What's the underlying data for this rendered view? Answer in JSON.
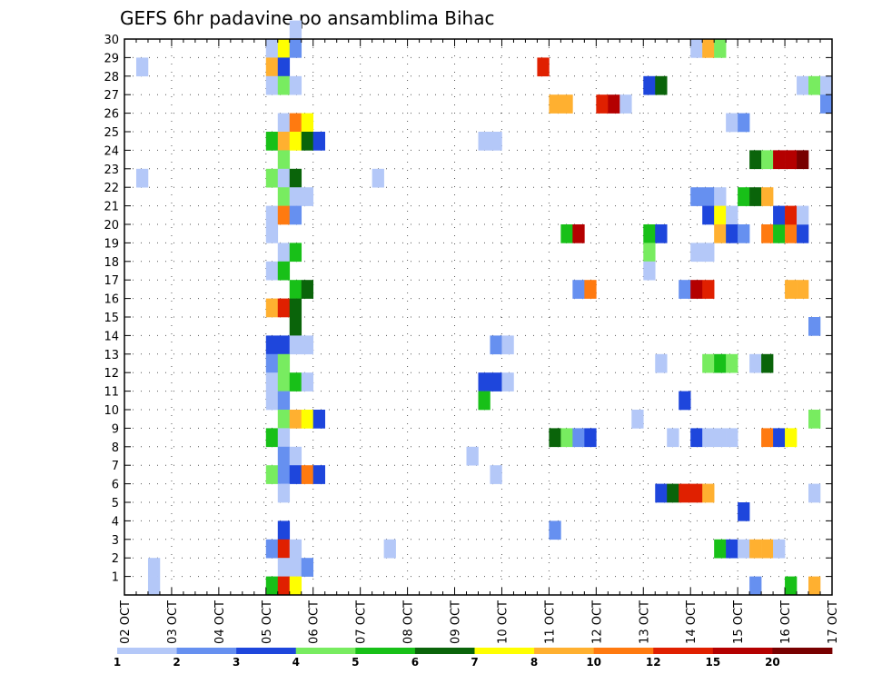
{
  "chart_data": {
    "type": "heatmap",
    "title": "GEFS 6hr padavine po ansamblima Bihac",
    "xlabel": "",
    "ylabel": "",
    "x_start": "2 OCT 00Z",
    "x_step_hours": 6,
    "x_tick_labels": [
      "02 OCT",
      "03 OCT",
      "04 OCT",
      "05 OCT",
      "06 OCT",
      "07 OCT",
      "08 OCT",
      "09 OCT",
      "10 OCT",
      "11 OCT",
      "12 OCT",
      "13 OCT",
      "14 OCT",
      "15 OCT",
      "16 OCT",
      "17 OCT"
    ],
    "y_tick_labels": [
      "1",
      "2",
      "3",
      "4",
      "5",
      "6",
      "7",
      "8",
      "9",
      "10",
      "11",
      "12",
      "13",
      "14",
      "15",
      "16",
      "17",
      "18",
      "19",
      "20",
      "21",
      "22",
      "23",
      "24",
      "25",
      "26",
      "27",
      "28",
      "29",
      "30"
    ],
    "xlim": [
      0,
      60
    ],
    "ylim": [
      0,
      30
    ],
    "grid": true,
    "colorbar": {
      "labels": [
        "1",
        "2",
        "3",
        "4",
        "5",
        "6",
        "7",
        "8",
        "10",
        "12",
        "15",
        "20"
      ],
      "colors": [
        "#b4c8f8",
        "#6690f0",
        "#1e46dc",
        "#78ec60",
        "#18c018",
        "#0a640a",
        "#ffff00",
        "#ffb030",
        "#ff7a10",
        "#e02000",
        "#b40000",
        "#780000"
      ]
    },
    "cells_note": "Each cell: x = 6-hourly step index from 02 OCT 00Z, y = ensemble row (0 = baseline row below member 1), c = colour class index into colorbar.colors",
    "cells": [
      {
        "x": 1,
        "y": 28,
        "c": 0
      },
      {
        "x": 1,
        "y": 22,
        "c": 0
      },
      {
        "x": 2,
        "y": 1,
        "c": 0
      },
      {
        "x": 2,
        "y": 0,
        "c": 0
      },
      {
        "x": 12,
        "y": 29,
        "c": 0
      },
      {
        "x": 13,
        "y": 29,
        "c": 6
      },
      {
        "x": 14,
        "y": 29,
        "c": 1
      },
      {
        "x": 14,
        "y": 30,
        "c": 0
      },
      {
        "x": 12,
        "y": 28,
        "c": 7
      },
      {
        "x": 13,
        "y": 28,
        "c": 2
      },
      {
        "x": 12,
        "y": 27,
        "c": 0
      },
      {
        "x": 13,
        "y": 27,
        "c": 3
      },
      {
        "x": 14,
        "y": 27,
        "c": 0
      },
      {
        "x": 13,
        "y": 25,
        "c": 0
      },
      {
        "x": 14,
        "y": 25,
        "c": 8
      },
      {
        "x": 15,
        "y": 25,
        "c": 6
      },
      {
        "x": 12,
        "y": 24,
        "c": 4
      },
      {
        "x": 13,
        "y": 24,
        "c": 7
      },
      {
        "x": 14,
        "y": 24,
        "c": 6
      },
      {
        "x": 15,
        "y": 24,
        "c": 5
      },
      {
        "x": 16,
        "y": 24,
        "c": 2
      },
      {
        "x": 13,
        "y": 23,
        "c": 3
      },
      {
        "x": 12,
        "y": 22,
        "c": 3
      },
      {
        "x": 13,
        "y": 22,
        "c": 0
      },
      {
        "x": 14,
        "y": 22,
        "c": 5
      },
      {
        "x": 13,
        "y": 21,
        "c": 3
      },
      {
        "x": 14,
        "y": 21,
        "c": 0
      },
      {
        "x": 15,
        "y": 21,
        "c": 0
      },
      {
        "x": 12,
        "y": 20,
        "c": 0
      },
      {
        "x": 13,
        "y": 20,
        "c": 8
      },
      {
        "x": 14,
        "y": 20,
        "c": 1
      },
      {
        "x": 12,
        "y": 19,
        "c": 0
      },
      {
        "x": 13,
        "y": 18,
        "c": 0
      },
      {
        "x": 14,
        "y": 18,
        "c": 4
      },
      {
        "x": 12,
        "y": 17,
        "c": 0
      },
      {
        "x": 13,
        "y": 17,
        "c": 4
      },
      {
        "x": 14,
        "y": 16,
        "c": 4
      },
      {
        "x": 15,
        "y": 16,
        "c": 5
      },
      {
        "x": 12,
        "y": 15,
        "c": 7
      },
      {
        "x": 13,
        "y": 15,
        "c": 9
      },
      {
        "x": 14,
        "y": 15,
        "c": 5
      },
      {
        "x": 14,
        "y": 14,
        "c": 5
      },
      {
        "x": 12,
        "y": 13,
        "c": 2
      },
      {
        "x": 13,
        "y": 13,
        "c": 2
      },
      {
        "x": 14,
        "y": 13,
        "c": 0
      },
      {
        "x": 15,
        "y": 13,
        "c": 0
      },
      {
        "x": 12,
        "y": 12,
        "c": 1
      },
      {
        "x": 13,
        "y": 12,
        "c": 3
      },
      {
        "x": 12,
        "y": 11,
        "c": 0
      },
      {
        "x": 13,
        "y": 11,
        "c": 3
      },
      {
        "x": 14,
        "y": 11,
        "c": 4
      },
      {
        "x": 15,
        "y": 11,
        "c": 0
      },
      {
        "x": 12,
        "y": 10,
        "c": 0
      },
      {
        "x": 13,
        "y": 10,
        "c": 1
      },
      {
        "x": 13,
        "y": 9,
        "c": 3
      },
      {
        "x": 14,
        "y": 9,
        "c": 7
      },
      {
        "x": 15,
        "y": 9,
        "c": 6
      },
      {
        "x": 16,
        "y": 9,
        "c": 2
      },
      {
        "x": 12,
        "y": 8,
        "c": 4
      },
      {
        "x": 13,
        "y": 8,
        "c": 0
      },
      {
        "x": 13,
        "y": 7,
        "c": 1
      },
      {
        "x": 14,
        "y": 7,
        "c": 0
      },
      {
        "x": 12,
        "y": 6,
        "c": 3
      },
      {
        "x": 13,
        "y": 6,
        "c": 1
      },
      {
        "x": 14,
        "y": 6,
        "c": 2
      },
      {
        "x": 15,
        "y": 6,
        "c": 8
      },
      {
        "x": 16,
        "y": 6,
        "c": 2
      },
      {
        "x": 13,
        "y": 5,
        "c": 0
      },
      {
        "x": 13,
        "y": 3,
        "c": 2
      },
      {
        "x": 12,
        "y": 2,
        "c": 1
      },
      {
        "x": 13,
        "y": 2,
        "c": 9
      },
      {
        "x": 14,
        "y": 2,
        "c": 0
      },
      {
        "x": 13,
        "y": 1,
        "c": 0
      },
      {
        "x": 14,
        "y": 1,
        "c": 0
      },
      {
        "x": 15,
        "y": 1,
        "c": 1
      },
      {
        "x": 12,
        "y": 0,
        "c": 4
      },
      {
        "x": 13,
        "y": 0,
        "c": 9
      },
      {
        "x": 14,
        "y": 0,
        "c": 6
      },
      {
        "x": 21,
        "y": 22,
        "c": 0
      },
      {
        "x": 22,
        "y": 2,
        "c": 0
      },
      {
        "x": 29,
        "y": 7,
        "c": 0
      },
      {
        "x": 30,
        "y": 24,
        "c": 0
      },
      {
        "x": 31,
        "y": 24,
        "c": 0
      },
      {
        "x": 30,
        "y": 11,
        "c": 2
      },
      {
        "x": 31,
        "y": 11,
        "c": 2
      },
      {
        "x": 32,
        "y": 11,
        "c": 0
      },
      {
        "x": 30,
        "y": 10,
        "c": 4
      },
      {
        "x": 31,
        "y": 13,
        "c": 1
      },
      {
        "x": 32,
        "y": 13,
        "c": 0
      },
      {
        "x": 31,
        "y": 6,
        "c": 0
      },
      {
        "x": 35,
        "y": 28,
        "c": 9
      },
      {
        "x": 36,
        "y": 26,
        "c": 7
      },
      {
        "x": 37,
        "y": 26,
        "c": 7
      },
      {
        "x": 36,
        "y": 8,
        "c": 5
      },
      {
        "x": 37,
        "y": 8,
        "c": 3
      },
      {
        "x": 38,
        "y": 8,
        "c": 1
      },
      {
        "x": 39,
        "y": 8,
        "c": 2
      },
      {
        "x": 36,
        "y": 3,
        "c": 1
      },
      {
        "x": 37,
        "y": 19,
        "c": 4
      },
      {
        "x": 38,
        "y": 19,
        "c": 10
      },
      {
        "x": 38,
        "y": 16,
        "c": 1
      },
      {
        "x": 39,
        "y": 16,
        "c": 8
      },
      {
        "x": 40,
        "y": 26,
        "c": 9
      },
      {
        "x": 41,
        "y": 26,
        "c": 10
      },
      {
        "x": 42,
        "y": 26,
        "c": 0
      },
      {
        "x": 43,
        "y": 9,
        "c": 0
      },
      {
        "x": 44,
        "y": 27,
        "c": 2
      },
      {
        "x": 45,
        "y": 27,
        "c": 5
      },
      {
        "x": 44,
        "y": 19,
        "c": 4
      },
      {
        "x": 45,
        "y": 19,
        "c": 2
      },
      {
        "x": 44,
        "y": 18,
        "c": 3
      },
      {
        "x": 44,
        "y": 17,
        "c": 0
      },
      {
        "x": 45,
        "y": 12,
        "c": 0
      },
      {
        "x": 45,
        "y": 5,
        "c": 2
      },
      {
        "x": 46,
        "y": 5,
        "c": 5
      },
      {
        "x": 47,
        "y": 5,
        "c": 9
      },
      {
        "x": 48,
        "y": 5,
        "c": 9
      },
      {
        "x": 49,
        "y": 5,
        "c": 7
      },
      {
        "x": 46,
        "y": 8,
        "c": 0
      },
      {
        "x": 47,
        "y": 10,
        "c": 2
      },
      {
        "x": 47,
        "y": 16,
        "c": 1
      },
      {
        "x": 48,
        "y": 16,
        "c": 10
      },
      {
        "x": 49,
        "y": 16,
        "c": 9
      },
      {
        "x": 48,
        "y": 18,
        "c": 0
      },
      {
        "x": 49,
        "y": 18,
        "c": 0
      },
      {
        "x": 48,
        "y": 8,
        "c": 2
      },
      {
        "x": 49,
        "y": 8,
        "c": 0
      },
      {
        "x": 50,
        "y": 8,
        "c": 0
      },
      {
        "x": 51,
        "y": 8,
        "c": 0
      },
      {
        "x": 48,
        "y": 21,
        "c": 1
      },
      {
        "x": 49,
        "y": 21,
        "c": 1
      },
      {
        "x": 50,
        "y": 21,
        "c": 0
      },
      {
        "x": 48,
        "y": 29,
        "c": 0
      },
      {
        "x": 49,
        "y": 29,
        "c": 7
      },
      {
        "x": 50,
        "y": 29,
        "c": 3
      },
      {
        "x": 49,
        "y": 20,
        "c": 2
      },
      {
        "x": 50,
        "y": 20,
        "c": 6
      },
      {
        "x": 51,
        "y": 20,
        "c": 0
      },
      {
        "x": 50,
        "y": 19,
        "c": 7
      },
      {
        "x": 51,
        "y": 19,
        "c": 2
      },
      {
        "x": 52,
        "y": 19,
        "c": 1
      },
      {
        "x": 49,
        "y": 12,
        "c": 3
      },
      {
        "x": 50,
        "y": 12,
        "c": 4
      },
      {
        "x": 51,
        "y": 12,
        "c": 3
      },
      {
        "x": 50,
        "y": 2,
        "c": 4
      },
      {
        "x": 51,
        "y": 2,
        "c": 2
      },
      {
        "x": 52,
        "y": 2,
        "c": 0
      },
      {
        "x": 53,
        "y": 2,
        "c": 7
      },
      {
        "x": 54,
        "y": 2,
        "c": 7
      },
      {
        "x": 55,
        "y": 2,
        "c": 0
      },
      {
        "x": 51,
        "y": 25,
        "c": 0
      },
      {
        "x": 52,
        "y": 25,
        "c": 1
      },
      {
        "x": 52,
        "y": 4,
        "c": 2
      },
      {
        "x": 52,
        "y": 21,
        "c": 4
      },
      {
        "x": 53,
        "y": 21,
        "c": 5
      },
      {
        "x": 54,
        "y": 21,
        "c": 7
      },
      {
        "x": 53,
        "y": 23,
        "c": 5
      },
      {
        "x": 54,
        "y": 23,
        "c": 3
      },
      {
        "x": 55,
        "y": 23,
        "c": 10
      },
      {
        "x": 56,
        "y": 23,
        "c": 10
      },
      {
        "x": 57,
        "y": 23,
        "c": 11
      },
      {
        "x": 53,
        "y": 12,
        "c": 0
      },
      {
        "x": 54,
        "y": 12,
        "c": 5
      },
      {
        "x": 53,
        "y": 0,
        "c": 1
      },
      {
        "x": 54,
        "y": 19,
        "c": 8
      },
      {
        "x": 55,
        "y": 19,
        "c": 4
      },
      {
        "x": 56,
        "y": 19,
        "c": 8
      },
      {
        "x": 57,
        "y": 19,
        "c": 2
      },
      {
        "x": 55,
        "y": 20,
        "c": 2
      },
      {
        "x": 56,
        "y": 20,
        "c": 9
      },
      {
        "x": 57,
        "y": 20,
        "c": 0
      },
      {
        "x": 54,
        "y": 8,
        "c": 8
      },
      {
        "x": 55,
        "y": 8,
        "c": 2
      },
      {
        "x": 56,
        "y": 8,
        "c": 6
      },
      {
        "x": 56,
        "y": 16,
        "c": 7
      },
      {
        "x": 57,
        "y": 16,
        "c": 7
      },
      {
        "x": 56,
        "y": 0,
        "c": 4
      },
      {
        "x": 58,
        "y": 0,
        "c": 7
      },
      {
        "x": 57,
        "y": 27,
        "c": 0
      },
      {
        "x": 58,
        "y": 27,
        "c": 3
      },
      {
        "x": 59,
        "y": 27,
        "c": 0
      },
      {
        "x": 59,
        "y": 26,
        "c": 1
      },
      {
        "x": 58,
        "y": 14,
        "c": 1
      },
      {
        "x": 58,
        "y": 9,
        "c": 3
      },
      {
        "x": 58,
        "y": 5,
        "c": 0
      }
    ]
  }
}
